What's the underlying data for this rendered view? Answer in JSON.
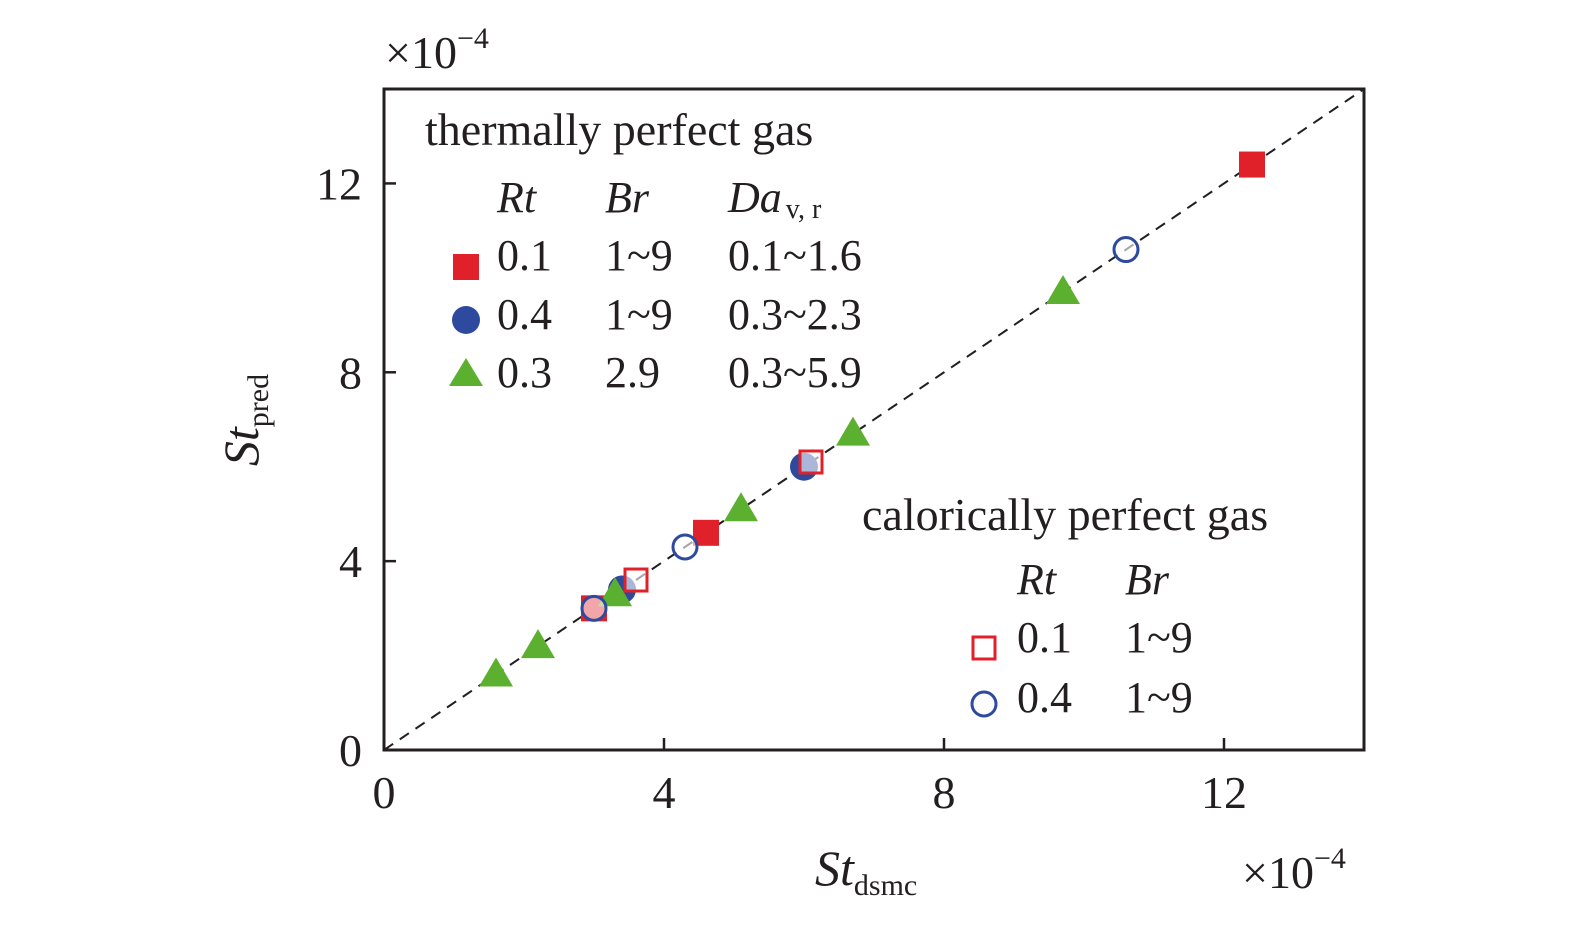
{
  "chart_data": {
    "type": "scatter",
    "xlabel": {
      "main": "St",
      "sub": "dsmc"
    },
    "ylabel": {
      "main": "St",
      "sub": "pred"
    },
    "x_multiplier": {
      "base": "×10",
      "exp": "−4"
    },
    "y_multiplier": {
      "base": "×10",
      "exp": "−4"
    },
    "xlim": [
      0,
      14
    ],
    "ylim": [
      0,
      14
    ],
    "xticks": [
      0,
      4,
      8,
      12
    ],
    "yticks": [
      0,
      4,
      8,
      12
    ],
    "grid": false,
    "reference_line": {
      "style": "dashed",
      "from": [
        0,
        0
      ],
      "to": [
        14,
        14
      ]
    },
    "series": [
      {
        "marker": "filled-square",
        "color": "#e0212a",
        "points": [
          [
            3.0,
            3.0
          ],
          [
            4.6,
            4.6
          ],
          [
            12.4,
            12.4
          ]
        ]
      },
      {
        "marker": "filled-circle",
        "color": "#2e4a9e",
        "points": [
          [
            3.4,
            3.4
          ],
          [
            6.0,
            6.0
          ]
        ]
      },
      {
        "marker": "filled-triangle",
        "color": "#5cb030",
        "points": [
          [
            1.6,
            1.6
          ],
          [
            2.2,
            2.2
          ],
          [
            3.3,
            3.3
          ],
          [
            5.1,
            5.1
          ],
          [
            6.7,
            6.7
          ],
          [
            9.7,
            9.7
          ]
        ]
      },
      {
        "marker": "open-square",
        "color": "#e0212a",
        "points": [
          [
            3.6,
            3.6
          ],
          [
            6.1,
            6.1
          ]
        ]
      },
      {
        "marker": "open-circle",
        "color": "#2e4a9e",
        "points": [
          [
            3.0,
            3.0
          ],
          [
            4.3,
            4.3
          ],
          [
            10.6,
            10.6
          ]
        ]
      }
    ],
    "legends": [
      {
        "title": "thermally perfect gas",
        "placement": "top-left",
        "headers": [
          {
            "main": "Rt",
            "sub": ""
          },
          {
            "main": "Br",
            "sub": ""
          },
          {
            "main": "Da",
            "sub": "v, r"
          }
        ],
        "rows": [
          {
            "marker": "filled-square",
            "color": "#e0212a",
            "cells": [
              "0.1",
              "1~9",
              "0.1~1.6"
            ]
          },
          {
            "marker": "filled-circle",
            "color": "#2e4a9e",
            "cells": [
              "0.4",
              "1~9",
              "0.3~2.3"
            ]
          },
          {
            "marker": "filled-triangle",
            "color": "#5cb030",
            "cells": [
              "0.3",
              "2.9",
              "0.3~5.9"
            ]
          }
        ]
      },
      {
        "title": "calorically perfect gas",
        "placement": "bottom-right",
        "headers": [
          {
            "main": "Rt",
            "sub": ""
          },
          {
            "main": "Br",
            "sub": ""
          }
        ],
        "rows": [
          {
            "marker": "open-square",
            "color": "#e0212a",
            "cells": [
              "0.1",
              "1~9"
            ]
          },
          {
            "marker": "open-circle",
            "color": "#2e4a9e",
            "cells": [
              "0.4",
              "1~9"
            ]
          }
        ]
      }
    ]
  }
}
